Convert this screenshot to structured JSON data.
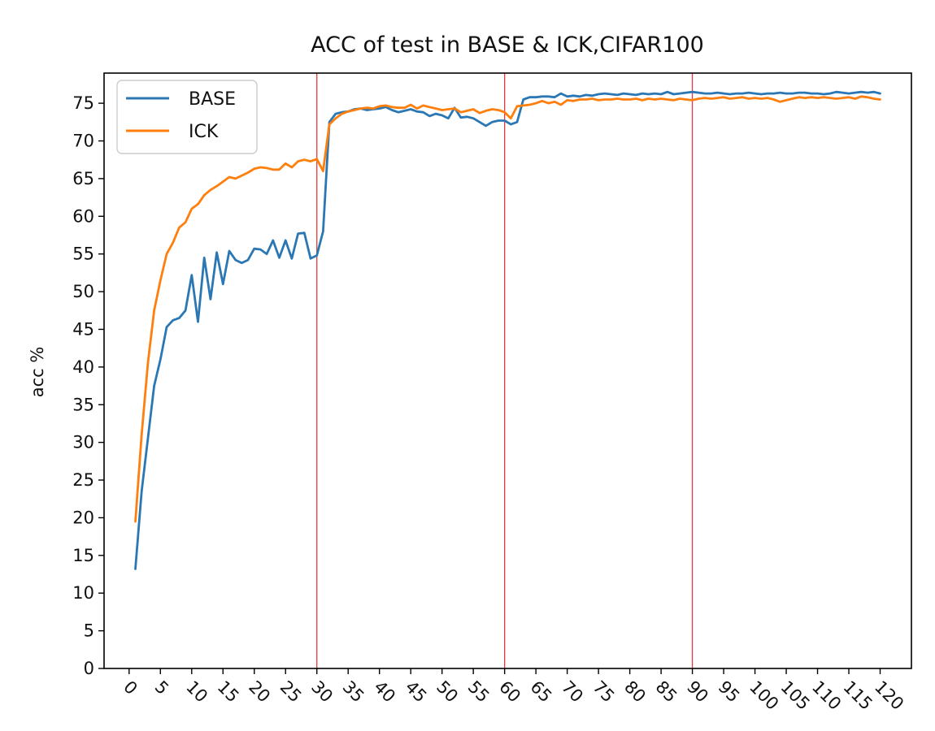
{
  "chart_data": {
    "type": "line",
    "title": "ACC of test in BASE & ICK,CIFAR100",
    "xlabel": "",
    "ylabel": "acc %",
    "xlim": [
      -4,
      125
    ],
    "ylim": [
      0,
      79
    ],
    "x_ticks": [
      0,
      5,
      10,
      15,
      20,
      25,
      30,
      35,
      40,
      45,
      50,
      55,
      60,
      65,
      70,
      75,
      80,
      85,
      90,
      95,
      100,
      105,
      110,
      115,
      120
    ],
    "y_ticks": [
      0,
      5,
      10,
      15,
      20,
      25,
      30,
      35,
      40,
      45,
      50,
      55,
      60,
      65,
      70,
      75
    ],
    "grid": false,
    "legend": {
      "position": "top-left",
      "entries": [
        "BASE",
        "ICK"
      ]
    },
    "vlines": [
      30,
      60,
      90
    ],
    "vline_color": "#e8393b",
    "series": [
      {
        "name": "BASE",
        "color": "#2a77b4",
        "x": [
          1,
          2,
          3,
          4,
          5,
          6,
          7,
          8,
          9,
          10,
          11,
          12,
          13,
          14,
          15,
          16,
          17,
          18,
          19,
          20,
          21,
          22,
          23,
          24,
          25,
          26,
          27,
          28,
          29,
          30,
          31,
          32,
          33,
          34,
          35,
          36,
          37,
          38,
          39,
          40,
          41,
          42,
          43,
          44,
          45,
          46,
          47,
          48,
          49,
          50,
          51,
          52,
          53,
          54,
          55,
          56,
          57,
          58,
          59,
          60,
          61,
          62,
          63,
          64,
          65,
          66,
          67,
          68,
          69,
          70,
          71,
          72,
          73,
          74,
          75,
          76,
          77,
          78,
          79,
          80,
          81,
          82,
          83,
          84,
          85,
          86,
          87,
          88,
          89,
          90,
          91,
          92,
          93,
          94,
          95,
          96,
          97,
          98,
          99,
          100,
          101,
          102,
          103,
          104,
          105,
          106,
          107,
          108,
          109,
          110,
          111,
          112,
          113,
          114,
          115,
          116,
          117,
          118,
          119,
          120
        ],
        "y": [
          13.2,
          23.5,
          30.5,
          37.5,
          41.0,
          45.3,
          46.2,
          46.5,
          47.5,
          52.2,
          46.0,
          54.5,
          49.0,
          55.2,
          51.0,
          55.4,
          54.2,
          53.8,
          54.2,
          55.7,
          55.6,
          55.0,
          56.8,
          54.5,
          56.8,
          54.4,
          57.7,
          57.8,
          54.4,
          54.8,
          58.0,
          72.5,
          73.6,
          73.8,
          73.9,
          74.2,
          74.3,
          74.1,
          74.2,
          74.3,
          74.5,
          74.1,
          73.8,
          74.0,
          74.2,
          73.9,
          73.8,
          73.3,
          73.6,
          73.4,
          73.0,
          74.4,
          73.1,
          73.2,
          73.0,
          72.5,
          72.0,
          72.5,
          72.7,
          72.7,
          72.2,
          72.5,
          75.5,
          75.8,
          75.8,
          75.9,
          75.9,
          75.8,
          76.3,
          75.9,
          76.0,
          75.9,
          76.1,
          76.0,
          76.2,
          76.3,
          76.2,
          76.1,
          76.3,
          76.2,
          76.1,
          76.3,
          76.2,
          76.3,
          76.2,
          76.5,
          76.2,
          76.3,
          76.4,
          76.5,
          76.4,
          76.3,
          76.3,
          76.4,
          76.3,
          76.2,
          76.3,
          76.3,
          76.4,
          76.3,
          76.2,
          76.3,
          76.3,
          76.4,
          76.3,
          76.3,
          76.4,
          76.4,
          76.3,
          76.3,
          76.2,
          76.3,
          76.5,
          76.4,
          76.3,
          76.4,
          76.5,
          76.4,
          76.5,
          76.3
        ]
      },
      {
        "name": "ICK",
        "color": "#ff7f0e",
        "x": [
          1,
          2,
          3,
          4,
          5,
          6,
          7,
          8,
          9,
          10,
          11,
          12,
          13,
          14,
          15,
          16,
          17,
          18,
          19,
          20,
          21,
          22,
          23,
          24,
          25,
          26,
          27,
          28,
          29,
          30,
          31,
          32,
          33,
          34,
          35,
          36,
          37,
          38,
          39,
          40,
          41,
          42,
          43,
          44,
          45,
          46,
          47,
          48,
          49,
          50,
          51,
          52,
          53,
          54,
          55,
          56,
          57,
          58,
          59,
          60,
          61,
          62,
          63,
          64,
          65,
          66,
          67,
          68,
          69,
          70,
          71,
          72,
          73,
          74,
          75,
          76,
          77,
          78,
          79,
          80,
          81,
          82,
          83,
          84,
          85,
          86,
          87,
          88,
          89,
          90,
          91,
          92,
          93,
          94,
          95,
          96,
          97,
          98,
          99,
          100,
          101,
          102,
          103,
          104,
          105,
          106,
          107,
          108,
          109,
          110,
          111,
          112,
          113,
          114,
          115,
          116,
          117,
          118,
          119,
          120
        ],
        "y": [
          19.5,
          31.0,
          40.5,
          47.5,
          51.5,
          55.0,
          56.5,
          58.5,
          59.2,
          61.0,
          61.6,
          62.8,
          63.5,
          64.0,
          64.6,
          65.2,
          65.0,
          65.4,
          65.8,
          66.3,
          66.5,
          66.4,
          66.2,
          66.2,
          67.0,
          66.5,
          67.3,
          67.5,
          67.3,
          67.6,
          66.0,
          72.2,
          73.0,
          73.6,
          73.9,
          74.1,
          74.3,
          74.4,
          74.3,
          74.6,
          74.7,
          74.5,
          74.4,
          74.4,
          74.8,
          74.3,
          74.7,
          74.5,
          74.3,
          74.1,
          74.2,
          74.3,
          73.8,
          74.0,
          74.2,
          73.7,
          74.0,
          74.2,
          74.1,
          73.8,
          73.0,
          74.6,
          74.7,
          74.8,
          75.0,
          75.3,
          75.0,
          75.2,
          74.8,
          75.4,
          75.3,
          75.5,
          75.5,
          75.6,
          75.4,
          75.5,
          75.5,
          75.6,
          75.5,
          75.5,
          75.6,
          75.4,
          75.6,
          75.5,
          75.6,
          75.5,
          75.4,
          75.6,
          75.5,
          75.4,
          75.6,
          75.7,
          75.6,
          75.7,
          75.8,
          75.6,
          75.7,
          75.8,
          75.6,
          75.7,
          75.6,
          75.7,
          75.5,
          75.2,
          75.4,
          75.6,
          75.8,
          75.7,
          75.8,
          75.7,
          75.8,
          75.7,
          75.6,
          75.7,
          75.8,
          75.6,
          75.9,
          75.8,
          75.6,
          75.5
        ]
      }
    ]
  }
}
